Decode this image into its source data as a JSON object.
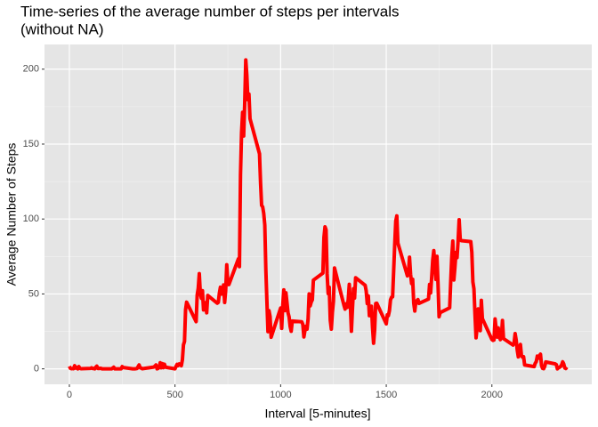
{
  "chart_data": {
    "type": "line",
    "title": [
      "Time-series of the average number of steps per intervals",
      "(without NA)"
    ],
    "x_label": "Interval [5-minutes]",
    "y_label": "Average Number of Steps",
    "x": [
      0,
      5,
      10,
      15,
      20,
      25,
      30,
      35,
      40,
      45,
      50,
      55,
      100,
      105,
      110,
      115,
      120,
      125,
      130,
      135,
      140,
      145,
      150,
      155,
      200,
      210,
      215,
      220,
      230,
      240,
      245,
      250,
      255,
      300,
      310,
      320,
      330,
      335,
      340,
      345,
      400,
      410,
      415,
      420,
      425,
      430,
      435,
      440,
      445,
      450,
      455,
      500,
      505,
      510,
      515,
      520,
      525,
      530,
      535,
      540,
      545,
      550,
      555,
      600,
      605,
      610,
      615,
      620,
      625,
      630,
      635,
      640,
      645,
      650,
      655,
      700,
      705,
      710,
      715,
      720,
      725,
      730,
      735,
      740,
      745,
      750,
      755,
      800,
      805,
      810,
      815,
      820,
      825,
      830,
      835,
      840,
      845,
      850,
      855,
      900,
      905,
      910,
      915,
      920,
      925,
      930,
      935,
      940,
      945,
      950,
      955,
      1000,
      1005,
      1010,
      1015,
      1020,
      1025,
      1030,
      1035,
      1040,
      1045,
      1050,
      1055,
      1100,
      1105,
      1110,
      1115,
      1120,
      1125,
      1130,
      1135,
      1140,
      1145,
      1150,
      1155,
      1200,
      1205,
      1210,
      1215,
      1220,
      1225,
      1230,
      1235,
      1240,
      1245,
      1250,
      1255,
      1300,
      1305,
      1310,
      1315,
      1320,
      1325,
      1330,
      1335,
      1340,
      1345,
      1350,
      1355,
      1400,
      1405,
      1410,
      1415,
      1420,
      1425,
      1430,
      1435,
      1440,
      1445,
      1450,
      1455,
      1500,
      1505,
      1510,
      1515,
      1520,
      1525,
      1530,
      1535,
      1540,
      1545,
      1550,
      1555,
      1600,
      1605,
      1610,
      1615,
      1620,
      1625,
      1630,
      1635,
      1640,
      1645,
      1650,
      1655,
      1700,
      1705,
      1710,
      1715,
      1720,
      1725,
      1730,
      1735,
      1740,
      1745,
      1750,
      1755,
      1800,
      1805,
      1810,
      1815,
      1820,
      1825,
      1830,
      1835,
      1840,
      1845,
      1850,
      1855,
      1900,
      1905,
      1910,
      1915,
      1920,
      1925,
      1930,
      1935,
      1940,
      1945,
      1950,
      1955,
      2000,
      2005,
      2010,
      2015,
      2020,
      2025,
      2030,
      2035,
      2040,
      2045,
      2050,
      2055,
      2100,
      2105,
      2110,
      2115,
      2120,
      2125,
      2130,
      2135,
      2140,
      2145,
      2150,
      2155,
      2200,
      2205,
      2210,
      2215,
      2220,
      2225,
      2230,
      2235,
      2240,
      2245,
      2250,
      2255,
      2300,
      2305,
      2310,
      2315,
      2320,
      2325,
      2330,
      2335,
      2340,
      2345,
      2350,
      2355
    ],
    "series": [
      {
        "color": "#ff0000",
        "values": [
          1.7,
          0.3,
          0.1,
          0.2,
          0.1,
          2.1,
          0.5,
          0.9,
          0,
          1.5,
          0.3,
          0.1,
          0.3,
          0.7,
          0.2,
          0.3,
          0,
          1.1,
          1.8,
          0.2,
          0.2,
          0.4,
          0.3,
          0,
          0,
          1.1,
          0,
          0,
          0,
          0,
          0,
          1.5,
          0.9,
          0,
          0,
          0.2,
          2.6,
          0.7,
          0.5,
          0.1,
          1.2,
          2.6,
          0,
          0.3,
          1.1,
          4.1,
          0.7,
          3.5,
          0.8,
          3.1,
          1.1,
          0,
          1.6,
          3,
          2.2,
          3.3,
          3,
          2.1,
          6,
          16,
          18.3,
          39.5,
          44.5,
          31.5,
          49.3,
          53.8,
          63.5,
          50,
          47.1,
          52.2,
          39.3,
          44,
          44.2,
          37.4,
          49,
          43.8,
          44.4,
          50.5,
          54.5,
          49.9,
          51,
          56,
          44.3,
          52.3,
          69.5,
          57.8,
          56.2,
          73.4,
          68.2,
          129.4,
          157.5,
          171.2,
          155.4,
          177.3,
          206.2,
          195.9,
          179.6,
          183.4,
          167,
          143.5,
          124,
          109.1,
          108.1,
          103.7,
          96,
          66.2,
          45.2,
          24.8,
          38.8,
          35,
          21.1,
          40.6,
          27,
          42.4,
          52.7,
          38.9,
          50.8,
          44.3,
          37.4,
          34.7,
          28.3,
          25.1,
          31.9,
          31.4,
          29.7,
          21.3,
          25.5,
          28.4,
          26.5,
          33.4,
          50,
          42,
          44.6,
          46,
          59.2,
          63.9,
          87.7,
          94.8,
          92.8,
          63.4,
          50.2,
          54.5,
          32.4,
          26.5,
          37.7,
          45.1,
          67.3,
          42.3,
          39.9,
          43.3,
          41,
          46.2,
          56.4,
          42.8,
          25.1,
          40,
          53.5,
          47.3,
          60.8,
          55.8,
          52,
          43.6,
          48.7,
          35.5,
          37.5,
          41.8,
          27.5,
          17.1,
          26.1,
          43.6,
          43.8,
          30,
          36.1,
          35.5,
          38.8,
          46,
          47.8,
          48.1,
          65.3,
          82.9,
          98.7,
          102.1,
          84,
          62.1,
          64.1,
          74.5,
          63.2,
          56.9,
          59.8,
          43.9,
          38.6,
          44.7,
          45.5,
          46.2,
          43.7,
          46.6,
          56.3,
          50.7,
          61.2,
          72.7,
          78.9,
          68.9,
          59.7,
          75.1,
          56.5,
          34.8,
          37.5,
          40.7,
          58,
          74.7,
          85.3,
          59.3,
          67.8,
          77.7,
          74.2,
          85.3,
          99.5,
          86.6,
          85.6,
          84.9,
          77.8,
          58,
          53.4,
          36.3,
          20.7,
          27.4,
          40,
          30.2,
          25.5,
          45.7,
          33.5,
          19.6,
          19,
          19.3,
          33.3,
          26.8,
          21.2,
          27.3,
          21.3,
          19.5,
          21.3,
          32.3,
          20.2,
          15.9,
          17.2,
          23.5,
          19.2,
          12.5,
          8,
          14.7,
          16.3,
          8.7,
          7.8,
          8.1,
          2.6,
          1.5,
          3.7,
          4.8,
          8.5,
          7.1,
          8.7,
          9.8,
          2.2,
          0.3,
          0.1,
          1.6,
          4.6,
          3.3,
          2.8,
          0,
          0.8,
          1,
          1.6,
          2.6,
          4.7,
          3.3,
          0.6,
          0.2,
          1.1
        ]
      }
    ],
    "xlim": [
      -117.75,
      2472.75
    ],
    "ylim": [
      -10.31,
      216.48
    ],
    "xticks": [
      0,
      500,
      1000,
      1500,
      2000
    ],
    "yticks": [
      0,
      50,
      100,
      150,
      200
    ],
    "grid": true
  }
}
